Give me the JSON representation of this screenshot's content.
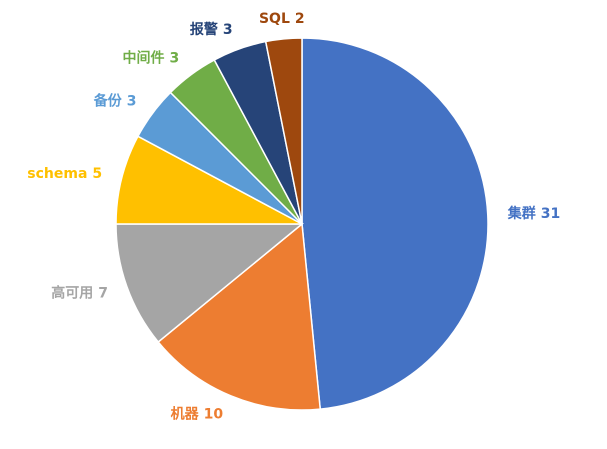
{
  "chart_data": {
    "type": "pie",
    "categories": [
      "集群",
      "机器",
      "高可用",
      "schema",
      "备份",
      "中间件",
      "报警",
      "SQL"
    ],
    "values": [
      31,
      10,
      7,
      5,
      3,
      3,
      3,
      2
    ],
    "colors": [
      "#4472c4",
      "#ed7d31",
      "#a5a5a5",
      "#ffc000",
      "#5b9bd5",
      "#70ad47",
      "#264478",
      "#9e480e"
    ]
  }
}
